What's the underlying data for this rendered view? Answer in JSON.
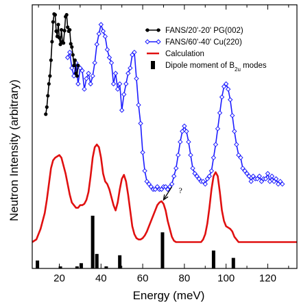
{
  "chart_data": {
    "type": "line",
    "xlabel": "Energy (meV)",
    "ylabel": "Neutron Intensity (arbitrary)",
    "xlim": [
      7,
      134
    ],
    "ylim": [
      0,
      1
    ],
    "xticks": [
      20,
      40,
      60,
      80,
      100,
      120
    ],
    "y_tick_labels": false,
    "grid": false,
    "legend_position": "top-right",
    "colors": {
      "pg": "#000000",
      "cu": "#1a1aff",
      "calc": "#e01010",
      "dipole": "#000000"
    },
    "series": [
      {
        "name": "FANS/20'-20' PG(002)",
        "style": "line-markers-filled-circle",
        "x": [
          13.5,
          14.0,
          14.5,
          15.0,
          15.5,
          16.0,
          16.5,
          17.0,
          17.5,
          18.0,
          18.5,
          19.0,
          19.5,
          20.0,
          20.5,
          21.0,
          21.5,
          22.0,
          22.5,
          23.0,
          23.5,
          24.0,
          24.5,
          25.0,
          25.5,
          26.0,
          26.5,
          27.0,
          27.5,
          28.0,
          28.5,
          29.0
        ],
        "y": [
          0.585,
          0.612,
          0.655,
          0.7,
          0.73,
          0.79,
          0.86,
          0.935,
          0.965,
          0.962,
          0.9,
          0.88,
          0.925,
          0.875,
          0.85,
          0.905,
          0.86,
          0.855,
          0.902,
          0.955,
          0.962,
          0.915,
          0.9,
          0.905,
          0.852,
          0.84,
          0.81,
          0.77,
          0.79,
          0.74,
          0.73,
          0.77
        ]
      },
      {
        "name": "FANS/60'-40' Cu(220)",
        "style": "line-markers-open-diamond",
        "x": [
          24,
          25,
          26,
          27,
          28,
          29,
          30,
          31,
          32,
          33,
          34,
          35,
          36,
          37,
          38,
          39,
          40,
          41,
          42,
          43,
          44,
          45,
          46,
          47,
          48,
          49,
          50,
          51,
          52,
          53,
          54,
          55,
          56,
          57,
          58,
          59,
          60,
          61,
          62,
          63,
          64,
          65,
          66,
          67,
          68,
          69,
          70,
          71,
          72,
          73,
          74,
          75,
          76,
          77,
          78,
          79,
          80,
          81,
          82,
          83,
          84,
          85,
          86,
          87,
          88,
          89,
          90,
          91,
          92,
          93,
          94,
          95,
          96,
          97,
          98,
          99,
          100,
          101,
          102,
          103,
          104,
          105,
          106,
          107,
          108,
          109,
          110,
          111,
          112,
          113,
          114,
          115,
          116,
          117,
          118,
          119,
          120,
          121,
          122,
          123,
          124,
          125,
          126,
          127
        ],
        "y": [
          0.8,
          0.82,
          0.76,
          0.73,
          0.78,
          0.7,
          0.76,
          0.75,
          0.68,
          0.72,
          0.74,
          0.7,
          0.73,
          0.78,
          0.85,
          0.89,
          0.925,
          0.9,
          0.88,
          0.83,
          0.8,
          0.78,
          0.7,
          0.74,
          0.68,
          0.7,
          0.6,
          0.66,
          0.7,
          0.74,
          0.76,
          0.81,
          0.82,
          0.72,
          0.62,
          0.55,
          0.44,
          0.37,
          0.33,
          0.32,
          0.31,
          0.3,
          0.3,
          0.31,
          0.3,
          0.3,
          0.31,
          0.31,
          0.3,
          0.31,
          0.32,
          0.35,
          0.38,
          0.43,
          0.48,
          0.52,
          0.54,
          0.52,
          0.48,
          0.43,
          0.38,
          0.36,
          0.35,
          0.34,
          0.33,
          0.33,
          0.32,
          0.34,
          0.35,
          0.37,
          0.42,
          0.47,
          0.53,
          0.59,
          0.65,
          0.69,
          0.7,
          0.68,
          0.64,
          0.58,
          0.52,
          0.47,
          0.43,
          0.42,
          0.38,
          0.37,
          0.36,
          0.35,
          0.33,
          0.35,
          0.34,
          0.34,
          0.35,
          0.33,
          0.34,
          0.34,
          0.36,
          0.33,
          0.35,
          0.33,
          0.34,
          0.32,
          0.33,
          0.32
        ]
      },
      {
        "name": "Calculation",
        "style": "line",
        "x": [
          7,
          9,
          11,
          13,
          14,
          15,
          16,
          17,
          18,
          19,
          20,
          21,
          22,
          23,
          24,
          25,
          26,
          27,
          28,
          29,
          30,
          31,
          32,
          33,
          34,
          35,
          36,
          37,
          38,
          39,
          40,
          41,
          42,
          43,
          44,
          45,
          46,
          47,
          48,
          49,
          50,
          51,
          52,
          53,
          54,
          55,
          56,
          57,
          58,
          59,
          60,
          61,
          62,
          63,
          64,
          65,
          66,
          67,
          68,
          69,
          70,
          71,
          72,
          73,
          74,
          75,
          76,
          77,
          78,
          79,
          80,
          81,
          82,
          83,
          84,
          85,
          86,
          87,
          88,
          89,
          90,
          91,
          92,
          93,
          94,
          95,
          96,
          97,
          98,
          99,
          100,
          101,
          102,
          103,
          104,
          105,
          106,
          107,
          108,
          110,
          115,
          120,
          125,
          130,
          134
        ],
        "y": [
          0.1,
          0.11,
          0.15,
          0.21,
          0.26,
          0.32,
          0.38,
          0.41,
          0.42,
          0.425,
          0.43,
          0.42,
          0.39,
          0.36,
          0.32,
          0.28,
          0.25,
          0.24,
          0.23,
          0.23,
          0.24,
          0.24,
          0.245,
          0.26,
          0.29,
          0.35,
          0.42,
          0.46,
          0.47,
          0.46,
          0.42,
          0.36,
          0.33,
          0.32,
          0.3,
          0.27,
          0.24,
          0.22,
          0.25,
          0.3,
          0.34,
          0.355,
          0.33,
          0.28,
          0.22,
          0.16,
          0.13,
          0.115,
          0.11,
          0.11,
          0.115,
          0.125,
          0.14,
          0.16,
          0.18,
          0.2,
          0.22,
          0.24,
          0.25,
          0.255,
          0.245,
          0.22,
          0.18,
          0.15,
          0.12,
          0.105,
          0.1,
          0.1,
          0.1,
          0.1,
          0.1,
          0.1,
          0.1,
          0.1,
          0.1,
          0.1,
          0.1,
          0.1,
          0.1,
          0.11,
          0.13,
          0.17,
          0.23,
          0.3,
          0.35,
          0.365,
          0.35,
          0.29,
          0.22,
          0.18,
          0.16,
          0.155,
          0.15,
          0.14,
          0.12,
          0.11,
          0.1,
          0.1,
          0.1,
          0.1,
          0.1,
          0.1,
          0.1,
          0.1,
          0.1
        ]
      },
      {
        "name": "Dipole moment of B2u modes",
        "style": "bars",
        "x": [
          9.5,
          20.5,
          28.5,
          30.5,
          36.0,
          38.0,
          42.5,
          49.0,
          69.5,
          94.0,
          103.5
        ],
        "y": [
          0.03,
          0.005,
          0.006,
          0.02,
          0.2,
          0.055,
          0.005,
          0.05,
          0.137,
          0.068,
          0.04
        ]
      }
    ],
    "annotations": [
      {
        "text": "?",
        "type": "arrow",
        "from": [
          74,
          0.31
        ],
        "to": [
          70,
          0.26
        ]
      }
    ],
    "legend": [
      {
        "label": "FANS/20'-20' PG(002)"
      },
      {
        "label": "FANS/60'-40' Cu(220)"
      },
      {
        "label": "Calculation"
      },
      {
        "label": "Dipole moment of B",
        "sub": "2u",
        "suffix": " modes"
      }
    ]
  }
}
